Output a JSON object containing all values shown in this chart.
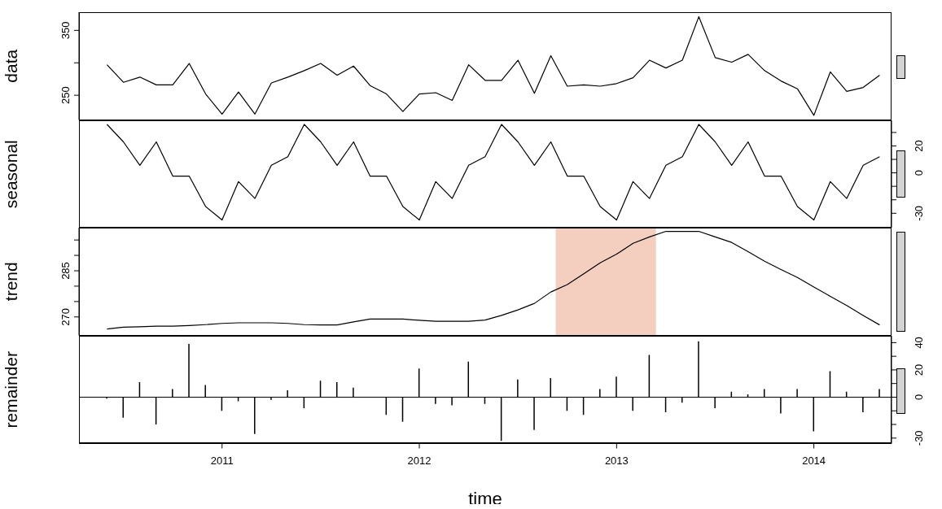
{
  "chart_data": [
    {
      "type": "line",
      "ylabel": "data",
      "x": [
        "2010-06",
        "2010-07",
        "2010-08",
        "2010-09",
        "2010-10",
        "2010-11",
        "2010-12",
        "2011-01",
        "2011-02",
        "2011-03",
        "2011-04",
        "2011-05",
        "2011-06",
        "2011-07",
        "2011-08",
        "2011-09",
        "2011-10",
        "2011-11",
        "2011-12",
        "2012-01",
        "2012-02",
        "2012-03",
        "2012-04",
        "2012-05",
        "2012-06",
        "2012-07",
        "2012-08",
        "2012-09",
        "2012-10",
        "2012-11",
        "2012-12",
        "2013-01",
        "2013-02",
        "2013-03",
        "2013-04",
        "2013-05",
        "2013-06",
        "2013-07",
        "2013-08",
        "2013-09",
        "2013-10",
        "2013-11",
        "2013-12",
        "2014-01",
        "2014-02",
        "2014-03",
        "2014-04",
        "2014-05"
      ],
      "series": [
        {
          "color": "#000000",
          "values": [
            297,
            270,
            278,
            266,
            266,
            299,
            252,
            221,
            255,
            221,
            269,
            278,
            288,
            299,
            281,
            295,
            265,
            252,
            225,
            252,
            254,
            242,
            297,
            273,
            273,
            304,
            253,
            311,
            264,
            266,
            264,
            268,
            277,
            304,
            292,
            304,
            371,
            308,
            301,
            313,
            288,
            272,
            260,
            219,
            286,
            256,
            262,
            281
          ]
        }
      ],
      "xlim": [
        "2010-04-10",
        "2014-05-23"
      ],
      "xticks": [
        "2011",
        "2012",
        "2013",
        "2014"
      ],
      "ylim": [
        212,
        378
      ],
      "yticks": [
        250,
        {
          "value": 300,
          "label": null
        },
        350
      ],
      "tick_labels": "y"
    },
    {
      "type": "line",
      "ylabel": "seasonal",
      "x": [
        "2010-06",
        "2010-07",
        "2010-08",
        "2010-09",
        "2010-10",
        "2010-11",
        "2010-12",
        "2011-01",
        "2011-02",
        "2011-03",
        "2011-04",
        "2011-05",
        "2011-06",
        "2011-07",
        "2011-08",
        "2011-09",
        "2011-10",
        "2011-11",
        "2011-12",
        "2012-01",
        "2012-02",
        "2012-03",
        "2012-04",
        "2012-05",
        "2012-06",
        "2012-07",
        "2012-08",
        "2012-09",
        "2012-10",
        "2012-11",
        "2012-12",
        "2013-01",
        "2013-02",
        "2013-03",
        "2013-04",
        "2013-05",
        "2013-06",
        "2013-07",
        "2013-08",
        "2013-09",
        "2013-10",
        "2013-11",
        "2013-12",
        "2014-01",
        "2014-02",
        "2014-03",
        "2014-04",
        "2014-05"
      ],
      "series": [
        {
          "color": "#000000",
          "values": [
            36,
            23,
            5.6,
            23,
            -2.4,
            -2.4,
            -25,
            -35,
            -6.5,
            -19,
            5.6,
            12,
            36,
            23,
            5.6,
            23,
            -2.4,
            -2.4,
            -25,
            -35,
            -6.5,
            -19,
            5.6,
            12,
            36,
            23,
            5.6,
            23,
            -2.4,
            -2.4,
            -25,
            -35,
            -6.5,
            -19,
            5.6,
            12,
            36,
            23,
            5.6,
            23,
            -2.4,
            -2.4,
            -25,
            -35,
            -6.5,
            -19,
            5.6,
            12
          ]
        }
      ],
      "xlim": [
        "2010-04-10",
        "2014-05-23"
      ],
      "xticks": [
        "2011",
        "2012",
        "2013",
        "2014"
      ],
      "ylim": [
        -41,
        39
      ],
      "yticks": [
        -30,
        {
          "value": -20,
          "label": null
        },
        {
          "value": -10,
          "label": null
        },
        0,
        {
          "value": 10,
          "label": null
        },
        20,
        {
          "value": 30,
          "label": null
        }
      ],
      "tick_labels": "y"
    },
    {
      "type": "line",
      "ylabel": "trend",
      "x": [
        "2010-06",
        "2010-07",
        "2010-08",
        "2010-09",
        "2010-10",
        "2010-11",
        "2010-12",
        "2011-01",
        "2011-02",
        "2011-03",
        "2011-04",
        "2011-05",
        "2011-06",
        "2011-07",
        "2011-08",
        "2011-09",
        "2011-10",
        "2011-11",
        "2011-12",
        "2012-01",
        "2012-02",
        "2012-03",
        "2012-04",
        "2012-05",
        "2012-06",
        "2012-07",
        "2012-08",
        "2012-09",
        "2012-10",
        "2012-11",
        "2012-12",
        "2013-01",
        "2013-02",
        "2013-03",
        "2013-04",
        "2013-05",
        "2013-06",
        "2013-07",
        "2013-08",
        "2013-09",
        "2013-10",
        "2013-11",
        "2013-12",
        "2014-01",
        "2014-02",
        "2014-03",
        "2014-04",
        "2014-05"
      ],
      "series": [
        {
          "color": "#000000",
          "values": [
            266.1,
            266.7,
            266.8,
            267.0,
            267.0,
            267.2,
            267.5,
            267.9,
            268.1,
            268.1,
            268.1,
            267.9,
            267.5,
            267.4,
            267.4,
            268.4,
            269.3,
            269.3,
            269.3,
            268.9,
            268.6,
            268.6,
            268.6,
            269.0,
            270.5,
            272.3,
            274.4,
            278.1,
            280.5,
            284.0,
            287.6,
            290.4,
            293.9,
            296.0,
            297.8,
            297.8,
            297.8,
            296.0,
            294.2,
            291.2,
            288.1,
            285.4,
            282.8,
            279.7,
            276.7,
            273.7,
            270.5,
            267.4
          ]
        }
      ],
      "bands": [
        {
          "axis": "x",
          "from": "2012-09-10",
          "to": "2013-03-13",
          "color": "#f4cfbf"
        }
      ],
      "xlim": [
        "2010-04-10",
        "2014-05-23"
      ],
      "xticks": [
        "2011",
        "2012",
        "2013",
        "2014"
      ],
      "ylim": [
        264,
        299
      ],
      "yticks": [
        270,
        {
          "value": 275,
          "label": null
        },
        {
          "value": 280,
          "label": null
        },
        285,
        {
          "value": 290,
          "label": null
        },
        {
          "value": 295,
          "label": null
        }
      ],
      "tick_labels": "y"
    },
    {
      "type": "bar",
      "ylabel": "remainder",
      "xlabel": "time",
      "x": [
        "2010-06",
        "2010-07",
        "2010-08",
        "2010-09",
        "2010-10",
        "2010-11",
        "2010-12",
        "2011-01",
        "2011-02",
        "2011-03",
        "2011-04",
        "2011-05",
        "2011-06",
        "2011-07",
        "2011-08",
        "2011-09",
        "2011-10",
        "2011-11",
        "2011-12",
        "2012-01",
        "2012-02",
        "2012-03",
        "2012-04",
        "2012-05",
        "2012-06",
        "2012-07",
        "2012-08",
        "2012-09",
        "2012-10",
        "2012-11",
        "2012-12",
        "2013-01",
        "2013-02",
        "2013-03",
        "2013-04",
        "2013-05",
        "2013-06",
        "2013-07",
        "2013-08",
        "2013-09",
        "2013-10",
        "2013-11",
        "2013-12",
        "2014-01",
        "2014-02",
        "2014-03",
        "2014-04",
        "2014-05"
      ],
      "series": [
        {
          "color": "#000000",
          "values": [
            -1,
            -15,
            11,
            -20,
            6,
            39,
            9,
            -10,
            -3,
            -27,
            -2,
            5,
            -8,
            12,
            11,
            7,
            0,
            -13,
            -18,
            21,
            -5,
            -6,
            26,
            -5,
            -32,
            13,
            -24,
            14,
            -10,
            -13,
            6,
            15,
            -10,
            31,
            -11,
            -4,
            41,
            -8,
            4,
            2,
            6,
            -12,
            6,
            -25,
            19,
            4,
            -11,
            6
          ]
        }
      ],
      "ref_lines": [
        {
          "axis": "y",
          "value": 0
        }
      ],
      "xlim": [
        "2010-04-10",
        "2014-05-23"
      ],
      "xticks": [
        "2011",
        "2012",
        "2013",
        "2014"
      ],
      "ylim": [
        -34,
        45
      ],
      "yticks": [
        -30,
        {
          "value": -20,
          "label": null
        },
        {
          "value": -10,
          "label": null
        },
        0,
        {
          "value": 10,
          "label": null
        },
        20,
        {
          "value": 30,
          "label": null
        },
        40
      ]
    }
  ]
}
